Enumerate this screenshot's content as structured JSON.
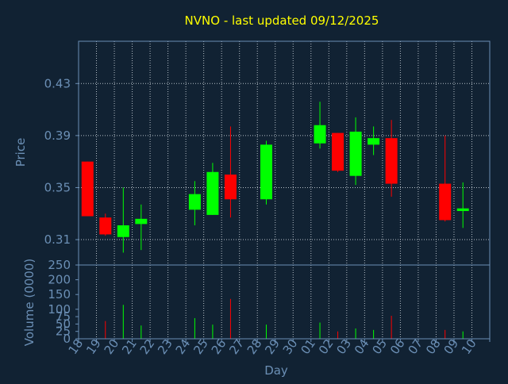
{
  "chart_data": {
    "type": "candlestick",
    "title": "NVNO - last updated 09/12/2025",
    "xlabel": "Day",
    "ylabel": "Price",
    "volume_ylabel": "Volume (0000)",
    "price_ylim": [
      0.2905,
      0.4625
    ],
    "price_ticks": [
      "0.31",
      "0.35",
      "0.39",
      "0.43"
    ],
    "volume_ylim": [
      0,
      250
    ],
    "volume_ticks": [
      "0",
      "25",
      "50",
      "75",
      "100",
      "150",
      "200",
      "250"
    ],
    "x_tick_labels": [
      "18",
      "19",
      "20",
      "21",
      "22",
      "23",
      "24",
      "25",
      "26",
      "27",
      "28",
      "29",
      "30",
      "01",
      "02",
      "03",
      "04",
      "05",
      "06",
      "07",
      "08",
      "09",
      "10"
    ],
    "grid": true,
    "colors": {
      "background": "#112233",
      "title": "#ffff00",
      "axis_text": "#6b8fb5",
      "frame": "#6b8fb5",
      "grid": "#c8d0d8",
      "up": "#00ff00",
      "down": "#ff0000"
    },
    "candles": [
      {
        "day": "18",
        "open": 0.37,
        "high": 0.37,
        "low": 0.328,
        "close": 0.328
      },
      {
        "day": "19",
        "open": 0.327,
        "high": 0.33,
        "low": 0.313,
        "close": 0.314
      },
      {
        "day": "20",
        "open": 0.312,
        "high": 0.35,
        "low": 0.3,
        "close": 0.321
      },
      {
        "day": "21",
        "open": 0.322,
        "high": 0.337,
        "low": 0.302,
        "close": 0.326
      },
      {
        "day": "24",
        "open": 0.333,
        "high": 0.355,
        "low": 0.321,
        "close": 0.345
      },
      {
        "day": "25",
        "open": 0.329,
        "high": 0.369,
        "low": 0.329,
        "close": 0.362
      },
      {
        "day": "26",
        "open": 0.36,
        "high": 0.397,
        "low": 0.327,
        "close": 0.341
      },
      {
        "day": "28",
        "open": 0.341,
        "high": 0.386,
        "low": 0.337,
        "close": 0.383
      },
      {
        "day": "01",
        "open": 0.384,
        "high": 0.416,
        "low": 0.38,
        "close": 0.398
      },
      {
        "day": "02",
        "open": 0.392,
        "high": 0.392,
        "low": 0.362,
        "close": 0.363
      },
      {
        "day": "03",
        "open": 0.359,
        "high": 0.404,
        "low": 0.352,
        "close": 0.393
      },
      {
        "day": "04",
        "open": 0.383,
        "high": 0.397,
        "low": 0.375,
        "close": 0.388
      },
      {
        "day": "05",
        "open": 0.388,
        "high": 0.402,
        "low": 0.343,
        "close": 0.353
      },
      {
        "day": "08",
        "open": 0.353,
        "high": 0.39,
        "low": 0.324,
        "close": 0.325
      },
      {
        "day": "09",
        "open": 0.332,
        "high": 0.354,
        "low": 0.319,
        "close": 0.334
      }
    ],
    "volume": [
      {
        "day": "18",
        "value": 0,
        "direction": "down"
      },
      {
        "day": "19",
        "value": 60,
        "direction": "down"
      },
      {
        "day": "20",
        "value": 115,
        "direction": "up"
      },
      {
        "day": "21",
        "value": 45,
        "direction": "up"
      },
      {
        "day": "24",
        "value": 70,
        "direction": "up"
      },
      {
        "day": "25",
        "value": 48,
        "direction": "up"
      },
      {
        "day": "26",
        "value": 135,
        "direction": "down"
      },
      {
        "day": "28",
        "value": 48,
        "direction": "up"
      },
      {
        "day": "01",
        "value": 55,
        "direction": "up"
      },
      {
        "day": "02",
        "value": 25,
        "direction": "down"
      },
      {
        "day": "03",
        "value": 35,
        "direction": "up"
      },
      {
        "day": "04",
        "value": 30,
        "direction": "up"
      },
      {
        "day": "05",
        "value": 78,
        "direction": "down"
      },
      {
        "day": "08",
        "value": 30,
        "direction": "down"
      },
      {
        "day": "09",
        "value": 25,
        "direction": "up"
      }
    ]
  }
}
